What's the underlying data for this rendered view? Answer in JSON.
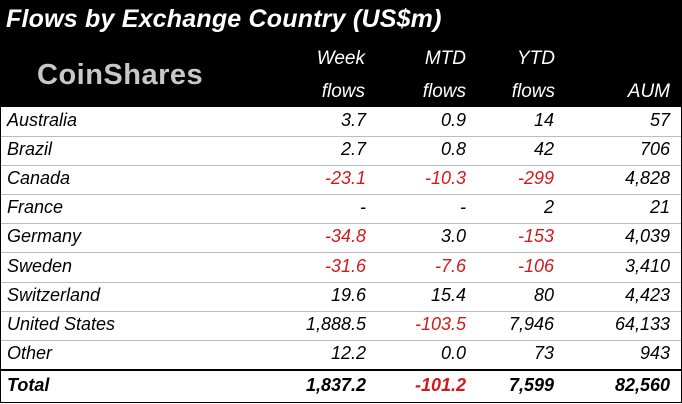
{
  "chart_data": {
    "type": "table",
    "title": "Flows by Exchange Country (US$m)",
    "logo_text": "CoinShares",
    "columns": [
      {
        "top": "Week",
        "bottom": "flows"
      },
      {
        "top": "MTD",
        "bottom": "flows"
      },
      {
        "top": "YTD",
        "bottom": "flows"
      },
      {
        "top": "",
        "bottom": "AUM"
      }
    ],
    "rows": [
      {
        "country": "Australia",
        "week": "3.7",
        "mtd": "0.9",
        "ytd": "14",
        "aum": "57"
      },
      {
        "country": "Brazil",
        "week": "2.7",
        "mtd": "0.8",
        "ytd": "42",
        "aum": "706"
      },
      {
        "country": "Canada",
        "week": "-23.1",
        "mtd": "-10.3",
        "ytd": "-299",
        "aum": "4,828"
      },
      {
        "country": "France",
        "week": "-",
        "mtd": "-",
        "ytd": "2",
        "aum": "21"
      },
      {
        "country": "Germany",
        "week": "-34.8",
        "mtd": "3.0",
        "ytd": "-153",
        "aum": "4,039"
      },
      {
        "country": "Sweden",
        "week": "-31.6",
        "mtd": "-7.6",
        "ytd": "-106",
        "aum": "3,410"
      },
      {
        "country": "Switzerland",
        "week": "19.6",
        "mtd": "15.4",
        "ytd": "80",
        "aum": "4,423"
      },
      {
        "country": "United States",
        "week": "1,888.5",
        "mtd": "-103.5",
        "ytd": "7,946",
        "aum": "64,133"
      },
      {
        "country": "Other",
        "week": "12.2",
        "mtd": "0.0",
        "ytd": "73",
        "aum": "943"
      }
    ],
    "total": {
      "country": "Total",
      "week": "1,837.2",
      "mtd": "-101.2",
      "ytd": "7,599",
      "aum": "82,560"
    },
    "colors": {
      "negative": "#d11a1a",
      "header_bg": "#000000",
      "header_text": "#ffffff",
      "logo": "#c8c8c8"
    }
  }
}
